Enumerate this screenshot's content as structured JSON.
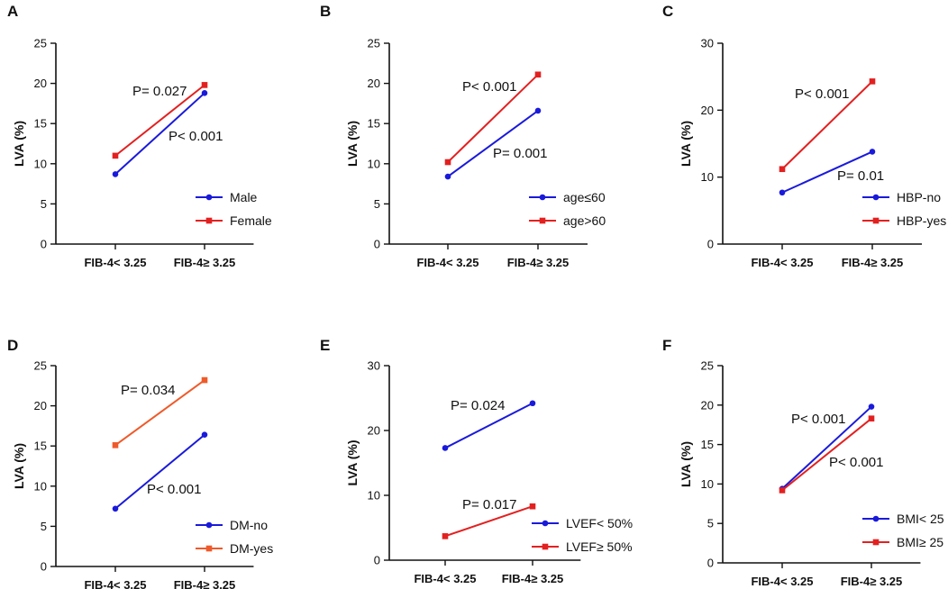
{
  "chart_data": [
    {
      "panel": "A",
      "type": "line",
      "ylabel": "LVA (%)",
      "ylim": [
        0,
        25
      ],
      "yticks": [
        0,
        5,
        10,
        15,
        20,
        25
      ],
      "categories": [
        "FIB-4< 3.25",
        "FIB-4≥ 3.25"
      ],
      "series": [
        {
          "name": "Male",
          "values": [
            8.7,
            18.8
          ],
          "color": "#1a1adb",
          "marker": "circle"
        },
        {
          "name": "Female",
          "values": [
            11.0,
            19.8
          ],
          "color": "#e32020",
          "marker": "square"
        }
      ],
      "annotations": [
        "P= 0.027",
        "P< 0.001"
      ]
    },
    {
      "panel": "B",
      "type": "line",
      "ylabel": "LVA (%)",
      "ylim": [
        0,
        25
      ],
      "yticks": [
        0,
        5,
        10,
        15,
        20,
        25
      ],
      "categories": [
        "FIB-4< 3.25",
        "FIB-4≥ 3.25"
      ],
      "series": [
        {
          "name": "age≤60",
          "values": [
            8.4,
            16.6
          ],
          "color": "#1a1adb",
          "marker": "circle"
        },
        {
          "name": "age>60",
          "values": [
            10.2,
            21.1
          ],
          "color": "#e32020",
          "marker": "square"
        }
      ],
      "annotations": [
        "P< 0.001",
        "P= 0.001"
      ]
    },
    {
      "panel": "C",
      "type": "line",
      "ylabel": "LVA (%)",
      "ylim": [
        0,
        30
      ],
      "yticks": [
        0,
        10,
        20,
        30
      ],
      "categories": [
        "FIB-4< 3.25",
        "FIB-4≥ 3.25"
      ],
      "series": [
        {
          "name": "HBP-no",
          "values": [
            7.7,
            13.8
          ],
          "color": "#1a1adb",
          "marker": "circle"
        },
        {
          "name": "HBP-yes",
          "values": [
            11.2,
            24.3
          ],
          "color": "#e32020",
          "marker": "square"
        }
      ],
      "annotations": [
        "P< 0.001",
        "P= 0.01"
      ]
    },
    {
      "panel": "D",
      "type": "line",
      "ylabel": "LVA (%)",
      "ylim": [
        0,
        25
      ],
      "yticks": [
        0,
        5,
        10,
        15,
        20,
        25
      ],
      "categories": [
        "FIB-4< 3.25",
        "FIB-4≥ 3.25"
      ],
      "series": [
        {
          "name": "DM-no",
          "values": [
            7.2,
            16.4
          ],
          "color": "#1a1adb",
          "marker": "circle"
        },
        {
          "name": "DM-yes",
          "values": [
            15.1,
            23.2
          ],
          "color": "#ef5a2a",
          "marker": "square"
        }
      ],
      "annotations": [
        "P= 0.034",
        "P< 0.001"
      ]
    },
    {
      "panel": "E",
      "type": "line",
      "ylabel": "LVA (%)",
      "ylim": [
        0,
        30
      ],
      "yticks": [
        0,
        10,
        20,
        30
      ],
      "categories": [
        "FIB-4< 3.25",
        "FIB-4≥ 3.25"
      ],
      "series": [
        {
          "name": "LVEF< 50%",
          "values": [
            17.3,
            24.2
          ],
          "color": "#1a1adb",
          "marker": "circle"
        },
        {
          "name": "LVEF≥ 50%",
          "values": [
            3.7,
            8.3
          ],
          "color": "#e32020",
          "marker": "square"
        }
      ],
      "annotations": [
        "P= 0.024",
        "P= 0.017"
      ]
    },
    {
      "panel": "F",
      "type": "line",
      "ylabel": "LVA (%)",
      "ylim": [
        0,
        25
      ],
      "yticks": [
        0,
        5,
        10,
        15,
        20,
        25
      ],
      "categories": [
        "FIB-4< 3.25",
        "FIB-4≥ 3.25"
      ],
      "series": [
        {
          "name": "BMI< 25",
          "values": [
            9.4,
            19.8
          ],
          "color": "#1a1adb",
          "marker": "circle"
        },
        {
          "name": "BMI≥ 25",
          "values": [
            9.2,
            18.3
          ],
          "color": "#e32020",
          "marker": "square"
        }
      ],
      "annotations": [
        "P< 0.001",
        "P< 0.001"
      ]
    }
  ]
}
